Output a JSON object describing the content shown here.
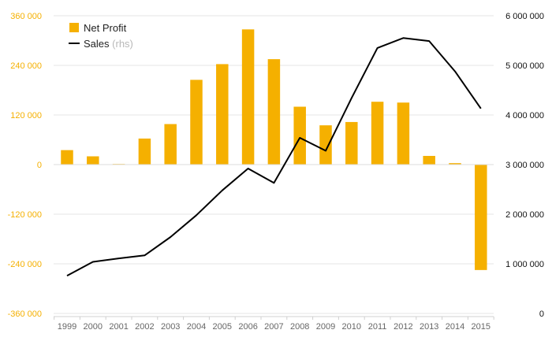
{
  "chart_data": {
    "type": "bar",
    "categories": [
      "1999",
      "2000",
      "2001",
      "2002",
      "2003",
      "2004",
      "2005",
      "2006",
      "2007",
      "2008",
      "2009",
      "2010",
      "2011",
      "2012",
      "2013",
      "2014",
      "2015"
    ],
    "series": [
      {
        "name": "Net Profit",
        "type": "bar",
        "axis": "left",
        "color": "#f5b000",
        "values": [
          35000,
          20000,
          1500,
          63000,
          98000,
          205000,
          243000,
          327000,
          255000,
          140000,
          95000,
          103000,
          152000,
          150000,
          21000,
          3500,
          -255000
        ]
      },
      {
        "name": "Sales",
        "legend_suffix": "(rhs)",
        "type": "line",
        "axis": "right",
        "color": "#000000",
        "values": [
          760000,
          1040000,
          1110000,
          1170000,
          1540000,
          1980000,
          2480000,
          2920000,
          2630000,
          3540000,
          3280000,
          4340000,
          5350000,
          5550000,
          5490000,
          4880000,
          4130000
        ]
      }
    ],
    "left_axis": {
      "ticks": [
        360000,
        240000,
        120000,
        0,
        -120000,
        -240000,
        -360000
      ],
      "tick_labels": [
        "360 000",
        "240 000",
        "120 000",
        "0",
        "-120 000",
        "-240 000",
        "-360 000"
      ],
      "range": [
        -360000,
        360000
      ]
    },
    "right_axis": {
      "ticks": [
        6000000,
        5000000,
        4000000,
        3000000,
        2000000,
        1000000,
        0
      ],
      "tick_labels": [
        "6 000 000",
        "5 000 000",
        "4 000 000",
        "3 000 000",
        "2 000 000",
        "1 000 000",
        "0"
      ],
      "range": [
        0,
        6000000
      ]
    },
    "grid": true,
    "legend_position": "top-left",
    "title": "",
    "xlabel": "",
    "ylabel": ""
  }
}
